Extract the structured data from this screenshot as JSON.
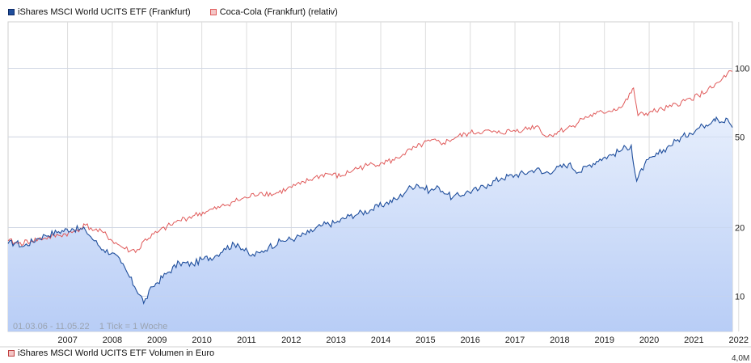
{
  "legend": {
    "series_1": "iShares MSCI World UCITS ETF (Frankfurt)",
    "series_2": "Coca-Cola (Frankfurt) (relativ)"
  },
  "colors": {
    "series_1": "#1f4e9c",
    "series_2": "#e05a5a",
    "fill_top": "#e6eefc",
    "fill_bottom": "#b8cdf6",
    "grid": "#dddddd"
  },
  "period_label": "01.03.06 - 11.05.22",
  "tick_label": "1 Tick = 1 Woche",
  "volume_legend": "iShares MSCI World UCITS ETF Volumen in Euro",
  "volume_axis_label": "4,0M",
  "chart_data": {
    "type": "line",
    "y_scale": "log",
    "ylim": [
      7,
      160
    ],
    "y_ticks": [
      10,
      20,
      50,
      100
    ],
    "x_range": [
      2006.17,
      2022.36
    ],
    "x_ticks": [
      "2007",
      "2008",
      "2009",
      "2010",
      "2011",
      "2012",
      "2013",
      "2014",
      "2015",
      "2016",
      "2017",
      "2018",
      "2019",
      "2020",
      "2021",
      "2022"
    ],
    "grid": true,
    "legend_position": "top-left",
    "series": [
      {
        "name": "iShares MSCI World UCITS ETF (Frankfurt)",
        "x": [
          2006.17,
          2006.35,
          2006.5,
          2006.8,
          2007.0,
          2007.3,
          2007.6,
          2007.9,
          2008.1,
          2008.3,
          2008.5,
          2008.7,
          2008.85,
          2009.0,
          2009.15,
          2009.2,
          2009.4,
          2009.7,
          2010.0,
          2010.3,
          2010.5,
          2010.8,
          2011.0,
          2011.3,
          2011.6,
          2011.8,
          2012.0,
          2012.3,
          2012.6,
          2012.9,
          2013.2,
          2013.5,
          2013.8,
          2014.0,
          2014.3,
          2014.6,
          2014.9,
          2015.1,
          2015.3,
          2015.6,
          2015.8,
          2016.0,
          2016.1,
          2016.4,
          2016.7,
          2016.9,
          2017.2,
          2017.5,
          2017.8,
          2018.0,
          2018.1,
          2018.4,
          2018.7,
          2018.95,
          2019.1,
          2019.4,
          2019.7,
          2019.9,
          2020.1,
          2020.15,
          2020.22,
          2020.4,
          2020.7,
          2020.9,
          2021.1,
          2021.4,
          2021.7,
          2021.95,
          2022.0,
          2022.15,
          2022.25,
          2022.36
        ],
        "y": [
          17,
          17.2,
          16.5,
          17.8,
          18.5,
          19.2,
          19.8,
          19.5,
          17.5,
          16.0,
          15.5,
          14.0,
          12.5,
          11.0,
          10.0,
          9.3,
          11.0,
          12.5,
          14.0,
          13.8,
          14.5,
          15.0,
          16.2,
          17.0,
          15.0,
          15.5,
          16.5,
          17.5,
          18.0,
          19.0,
          20.5,
          21.0,
          22.5,
          23.0,
          24.0,
          25.5,
          27.0,
          29.5,
          31.0,
          29.0,
          30.0,
          28.0,
          27.0,
          28.5,
          29.5,
          31.0,
          33.0,
          34.0,
          35.0,
          36.5,
          34.5,
          36.0,
          38.0,
          35.0,
          37.0,
          40.0,
          42.0,
          44.0,
          46.0,
          38.0,
          32.0,
          38.0,
          42.0,
          45.0,
          48.0,
          52.0,
          56.0,
          60.0,
          61.0,
          58.0,
          60.0,
          55.0
        ]
      },
      {
        "name": "Coca-Cola (Frankfurt) (relativ)",
        "x": [
          2006.17,
          2006.4,
          2006.7,
          2007.0,
          2007.3,
          2007.6,
          2007.9,
          2008.1,
          2008.3,
          2008.5,
          2008.7,
          2008.9,
          2009.1,
          2009.2,
          2009.5,
          2009.8,
          2010.0,
          2010.3,
          2010.6,
          2010.9,
          2011.2,
          2011.5,
          2011.8,
          2012.1,
          2012.4,
          2012.7,
          2013.0,
          2013.3,
          2013.6,
          2013.9,
          2014.2,
          2014.5,
          2014.8,
          2015.0,
          2015.3,
          2015.6,
          2015.9,
          2016.2,
          2016.5,
          2016.8,
          2017.1,
          2017.4,
          2017.7,
          2018.0,
          2018.2,
          2018.5,
          2018.8,
          2019.0,
          2019.3,
          2019.6,
          2019.9,
          2020.1,
          2020.15,
          2020.25,
          2020.5,
          2020.8,
          2021.0,
          2021.3,
          2021.6,
          2021.9,
          2022.1,
          2022.25,
          2022.36
        ],
        "y": [
          17.5,
          17.0,
          17.5,
          18.0,
          18.5,
          19.0,
          20.5,
          19.5,
          19.0,
          17.5,
          16.5,
          15.8,
          16.0,
          17.5,
          19.0,
          20.5,
          21.5,
          22.5,
          23.5,
          24.5,
          26.0,
          27.0,
          28.5,
          28.0,
          29.5,
          31.0,
          33.0,
          34.5,
          33.5,
          36.0,
          37.5,
          38.5,
          39.5,
          42.0,
          45.0,
          48.0,
          47.0,
          50.0,
          52.0,
          53.0,
          52.0,
          53.0,
          54.0,
          56.0,
          50.0,
          53.0,
          56.0,
          60.0,
          63.0,
          65.0,
          68.0,
          78.0,
          82.0,
          62.0,
          64.0,
          66.0,
          68.0,
          72.0,
          76.0,
          82.0,
          88.0,
          95.0,
          97.0
        ]
      }
    ]
  }
}
